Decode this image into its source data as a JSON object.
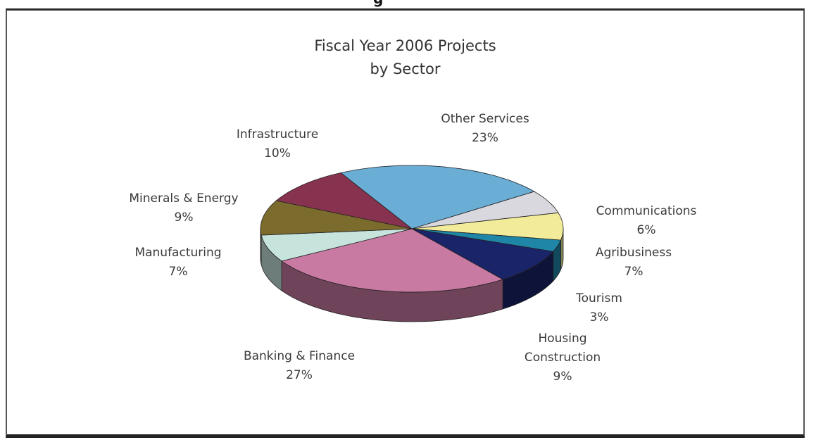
{
  "chart_data": {
    "type": "pie",
    "title": "Fiscal Year 2006 Projects",
    "subtitle": "by Sector",
    "slices": [
      {
        "label": "Other Services",
        "value": 23,
        "pct": "23%",
        "color": "#6aaed6"
      },
      {
        "label": "Communications",
        "value": 6,
        "pct": "6%",
        "color": "#d8d8de"
      },
      {
        "label": "Agribusiness",
        "value": 7,
        "pct": "7%",
        "color": "#f2ec9a"
      },
      {
        "label": "Tourism",
        "value": 3,
        "pct": "3%",
        "color": "#1f86a8"
      },
      {
        "label": "Housing",
        "label2": "Construction",
        "value": 9,
        "pct": "9%",
        "color": "#1a2468"
      },
      {
        "label": "Banking & Finance",
        "value": 27,
        "pct": "27%",
        "color": "#c97aa2"
      },
      {
        "label": "Manufacturing",
        "value": 7,
        "pct": "7%",
        "color": "#c6e4dc"
      },
      {
        "label": "Minerals & Energy",
        "value": 9,
        "pct": "9%",
        "color": "#7b6b2c"
      },
      {
        "label": "Infrastructure",
        "value": 10,
        "pct": "10%",
        "color": "#87334f"
      }
    ]
  },
  "header_fragment": "g"
}
